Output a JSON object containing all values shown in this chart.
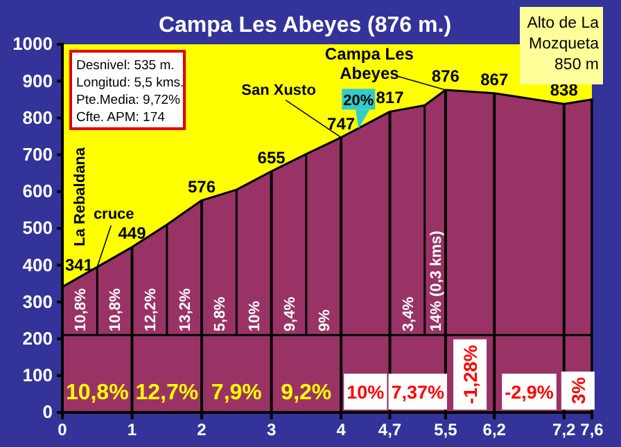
{
  "chart_data": {
    "type": "area",
    "title": "Campa Les Abeyes (876 m.)",
    "x": [
      0,
      0.5,
      1,
      1.5,
      2,
      2.5,
      3,
      3.5,
      4,
      4.7,
      5.2,
      5.5,
      6.2,
      7.2,
      7.6
    ],
    "series": [
      {
        "color": "#993366",
        "values": [
          341,
          395,
          449,
          510,
          576,
          605,
          655,
          702,
          747,
          817,
          834,
          876,
          867,
          838,
          850
        ],
        "value_labels": [
          "341",
          null,
          "449",
          null,
          "576",
          null,
          "655",
          null,
          "747",
          "817",
          null,
          "876",
          "867",
          "838",
          null
        ]
      }
    ],
    "xlim": [
      0,
      7.6
    ],
    "xticks": [
      0,
      1,
      2,
      3,
      4,
      {
        "value": 4.7,
        "label": "4,7"
      },
      {
        "value": 5.5,
        "label": "5,5"
      },
      {
        "value": 6.2,
        "label": "6,2"
      },
      {
        "value": 7.2,
        "label": "7,2"
      },
      {
        "value": 7.6,
        "label": "7,6"
      }
    ],
    "ylim": [
      0,
      1000
    ],
    "yticks": [
      0,
      100,
      200,
      300,
      400,
      500,
      600,
      700,
      800,
      900,
      1000
    ],
    "grid": "x",
    "ref_lines": [
      {
        "axis": "y",
        "value": 210,
        "color": "#000000"
      }
    ],
    "annotations": [
      "La Rebaldana",
      "Desnivel:  535 m.",
      "Longitud: 5,5 kms.",
      "Pte.Media: 9,72%",
      "Cfte. APM: 174",
      "Alto de La Mozqueta 850 m",
      "10,8%",
      "10,8%",
      "12,2%",
      "13,2%",
      "5,8%",
      "10%",
      "9,4%",
      "9%",
      "3,4%",
      "14% (0,3 kms)",
      "10,8%",
      "12,7%",
      "7,9%",
      "9,2%",
      "10%",
      "7,37%",
      "-1,28%",
      "-2,9%",
      "3%",
      {
        "text": "cruce",
        "x": 0.5,
        "y": 395
      },
      {
        "text": "San Xusto",
        "x": 4,
        "y": 747
      },
      {
        "text": "Campa Les Abeyes",
        "x": 5.5,
        "y": 876
      },
      {
        "text": "20%",
        "x": 4.25,
        "y": 770
      }
    ]
  }
}
